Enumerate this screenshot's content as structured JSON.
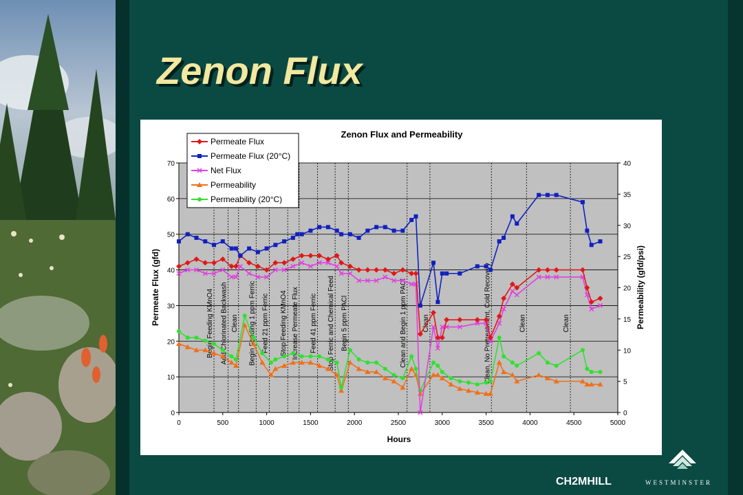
{
  "slide": {
    "title": "Zenon Flux",
    "logo_left": "CH2MHILL",
    "logo_right": "WESTMINSTER"
  },
  "chart_data": {
    "type": "line",
    "title": "Zenon Flux and Permeability",
    "xlabel": "Hours",
    "ylabel_left": "Permeate Flux (gfd)",
    "ylabel_right": "Permeability (gfd/psi)",
    "xlim": [
      0,
      5000
    ],
    "ylim_left": [
      0,
      70
    ],
    "ylim_right": [
      0,
      40
    ],
    "x_ticks": [
      0,
      500,
      1000,
      1500,
      2000,
      2500,
      3000,
      3500,
      4000,
      4500,
      5000
    ],
    "y_ticks_left": [
      0,
      10,
      20,
      30,
      40,
      50,
      60,
      70
    ],
    "y_ticks_right": [
      0,
      5,
      10,
      15,
      20,
      25,
      30,
      35,
      40
    ],
    "grid": "horizontal",
    "legend_position": "top-left",
    "series": [
      {
        "name": "Permeate Flux",
        "axis": "left",
        "color": "#e01818",
        "marker": "diamond",
        "x": [
          0,
          100,
          200,
          300,
          400,
          500,
          600,
          650,
          700,
          800,
          900,
          1000,
          1100,
          1200,
          1300,
          1400,
          1500,
          1600,
          1700,
          1800,
          1850,
          1950,
          2050,
          2150,
          2250,
          2350,
          2450,
          2550,
          2650,
          2700,
          2750,
          2900,
          2950,
          3000,
          3050,
          3200,
          3400,
          3500,
          3550,
          3650,
          3700,
          3800,
          3850,
          4100,
          4200,
          4300,
          4600,
          4650,
          4700,
          4800
        ],
        "y": [
          41,
          42,
          43,
          42,
          42,
          43,
          41,
          41,
          44,
          42,
          41,
          40,
          42,
          42,
          43,
          44,
          44,
          44,
          43,
          44,
          42,
          41,
          40,
          40,
          40,
          40,
          39,
          40,
          39,
          39,
          22,
          28,
          21,
          21,
          26,
          26,
          26,
          26,
          21,
          27,
          32,
          36,
          35,
          40,
          40,
          40,
          40,
          35,
          31,
          32
        ]
      },
      {
        "name": "Permeate Flux (20°C)",
        "axis": "left",
        "color": "#1020c0",
        "marker": "square",
        "x": [
          0,
          100,
          200,
          300,
          400,
          500,
          600,
          650,
          700,
          800,
          900,
          1000,
          1100,
          1200,
          1300,
          1350,
          1400,
          1500,
          1600,
          1700,
          1800,
          1850,
          1950,
          2050,
          2150,
          2250,
          2350,
          2450,
          2550,
          2650,
          2700,
          2750,
          2900,
          2950,
          3000,
          3050,
          3200,
          3400,
          3500,
          3550,
          3650,
          3700,
          3800,
          3850,
          4100,
          4200,
          4300,
          4600,
          4650,
          4700,
          4800
        ],
        "y": [
          48,
          50,
          49,
          48,
          47,
          48,
          46,
          46,
          44,
          46,
          45,
          46,
          47,
          48,
          49,
          50,
          50,
          51,
          52,
          52,
          51,
          50,
          50,
          49,
          51,
          52,
          52,
          51,
          51,
          54,
          55,
          30,
          42,
          31,
          39,
          39,
          39,
          41,
          41,
          40,
          48,
          49,
          55,
          53,
          61,
          61,
          61,
          59,
          51,
          47,
          48
        ]
      },
      {
        "name": "Net Flux",
        "axis": "left",
        "color": "#e040e0",
        "marker": "x",
        "x": [
          0,
          100,
          200,
          300,
          400,
          500,
          600,
          650,
          700,
          800,
          900,
          1000,
          1100,
          1200,
          1300,
          1400,
          1500,
          1600,
          1700,
          1800,
          1850,
          1950,
          2050,
          2150,
          2250,
          2350,
          2450,
          2550,
          2650,
          2700,
          2750,
          2900,
          2950,
          3000,
          3050,
          3200,
          3400,
          3500,
          3550,
          3650,
          3700,
          3800,
          3850,
          4100,
          4200,
          4300,
          4600,
          4650,
          4700,
          4800
        ],
        "y": [
          39,
          40,
          40,
          39,
          39,
          40,
          38,
          38,
          41,
          39,
          38,
          38,
          40,
          40,
          41,
          42,
          41,
          42,
          42,
          41,
          39,
          39,
          37,
          37,
          37,
          38,
          37,
          37,
          36,
          36,
          0,
          24,
          18,
          24,
          24,
          24,
          25,
          25,
          20,
          25,
          29,
          34,
          33,
          38,
          38,
          38,
          38,
          33,
          29,
          30
        ]
      },
      {
        "name": "Permeability",
        "axis": "right",
        "color": "#f07018",
        "marker": "triangle",
        "x": [
          0,
          100,
          200,
          300,
          400,
          500,
          600,
          650,
          750,
          850,
          950,
          1050,
          1100,
          1200,
          1300,
          1400,
          1500,
          1600,
          1700,
          1800,
          1850,
          1950,
          2050,
          2150,
          2250,
          2350,
          2450,
          2550,
          2650,
          2700,
          2750,
          2900,
          2950,
          3000,
          3100,
          3200,
          3300,
          3400,
          3500,
          3550,
          3650,
          3700,
          3800,
          3850,
          4100,
          4200,
          4300,
          4600,
          4650,
          4700,
          4800
        ],
        "y": [
          11,
          10.5,
          10,
          10,
          9.5,
          9,
          8,
          7.5,
          14,
          11,
          8,
          6,
          7,
          7.5,
          8,
          8,
          8,
          7.5,
          7,
          6,
          3.5,
          8,
          7,
          6.5,
          6.5,
          5.5,
          5,
          4,
          7,
          6,
          3,
          6,
          6,
          5.5,
          4.5,
          3.8,
          3.5,
          3.2,
          3,
          3,
          8,
          6.5,
          6,
          5,
          6,
          5.5,
          5,
          5,
          4.5,
          4.5,
          4.5
        ]
      },
      {
        "name": "Permeability (20°C)",
        "axis": "right",
        "color": "#30e030",
        "marker": "circle",
        "x": [
          0,
          100,
          200,
          300,
          400,
          500,
          600,
          650,
          750,
          850,
          950,
          1050,
          1100,
          1200,
          1300,
          1400,
          1500,
          1600,
          1700,
          1800,
          1850,
          1950,
          2050,
          2150,
          2250,
          2350,
          2450,
          2550,
          2650,
          2700,
          2750,
          2900,
          2950,
          3000,
          3100,
          3200,
          3300,
          3400,
          3500,
          3550,
          3650,
          3700,
          3800,
          3850,
          4100,
          4200,
          4300,
          4600,
          4650,
          4700,
          4800
        ],
        "y": [
          13,
          12,
          12,
          11.5,
          11,
          10,
          9,
          8.5,
          15.5,
          12,
          9.5,
          8,
          8.5,
          9,
          9.5,
          9,
          9,
          9,
          8.5,
          8,
          4,
          10,
          8.5,
          8,
          8,
          7,
          6,
          5.5,
          9,
          7,
          3.5,
          8,
          7.5,
          6.5,
          5.5,
          5,
          4.8,
          4.5,
          4.8,
          5,
          12,
          9,
          8,
          7.5,
          9.5,
          8,
          7.5,
          10,
          7,
          6.5,
          6.5
        ]
      }
    ],
    "annotations": [
      {
        "x": 400,
        "text": "Begin Feeding KMnO4"
      },
      {
        "x": 560,
        "text": "Add Chlorinated Backwash"
      },
      {
        "x": 680,
        "text": "Clean"
      },
      {
        "x": 880,
        "text": "Begin Feeding 1 ppm Ferric"
      },
      {
        "x": 1030,
        "text": "Feed 21 ppm Ferric"
      },
      {
        "x": 1240,
        "text": "Stop Feeding KMnO4"
      },
      {
        "x": 1370,
        "text": "Increase Permeate Flux"
      },
      {
        "x": 1580,
        "text": "Feed 41 ppm Ferric"
      },
      {
        "x": 1780,
        "text": "Stop Ferric and Chemical Feed"
      },
      {
        "x": 1930,
        "text": "Begin 5 ppm PACl"
      },
      {
        "x": 2600,
        "text": "Clean and Begin 1 ppm PACl"
      },
      {
        "x": 2860,
        "text": "Clean"
      },
      {
        "x": 3560,
        "text": "Clean, No Pretreatment, Cold Recovery"
      },
      {
        "x": 3960,
        "text": "Clean"
      },
      {
        "x": 4460,
        "text": "Clean"
      }
    ]
  }
}
